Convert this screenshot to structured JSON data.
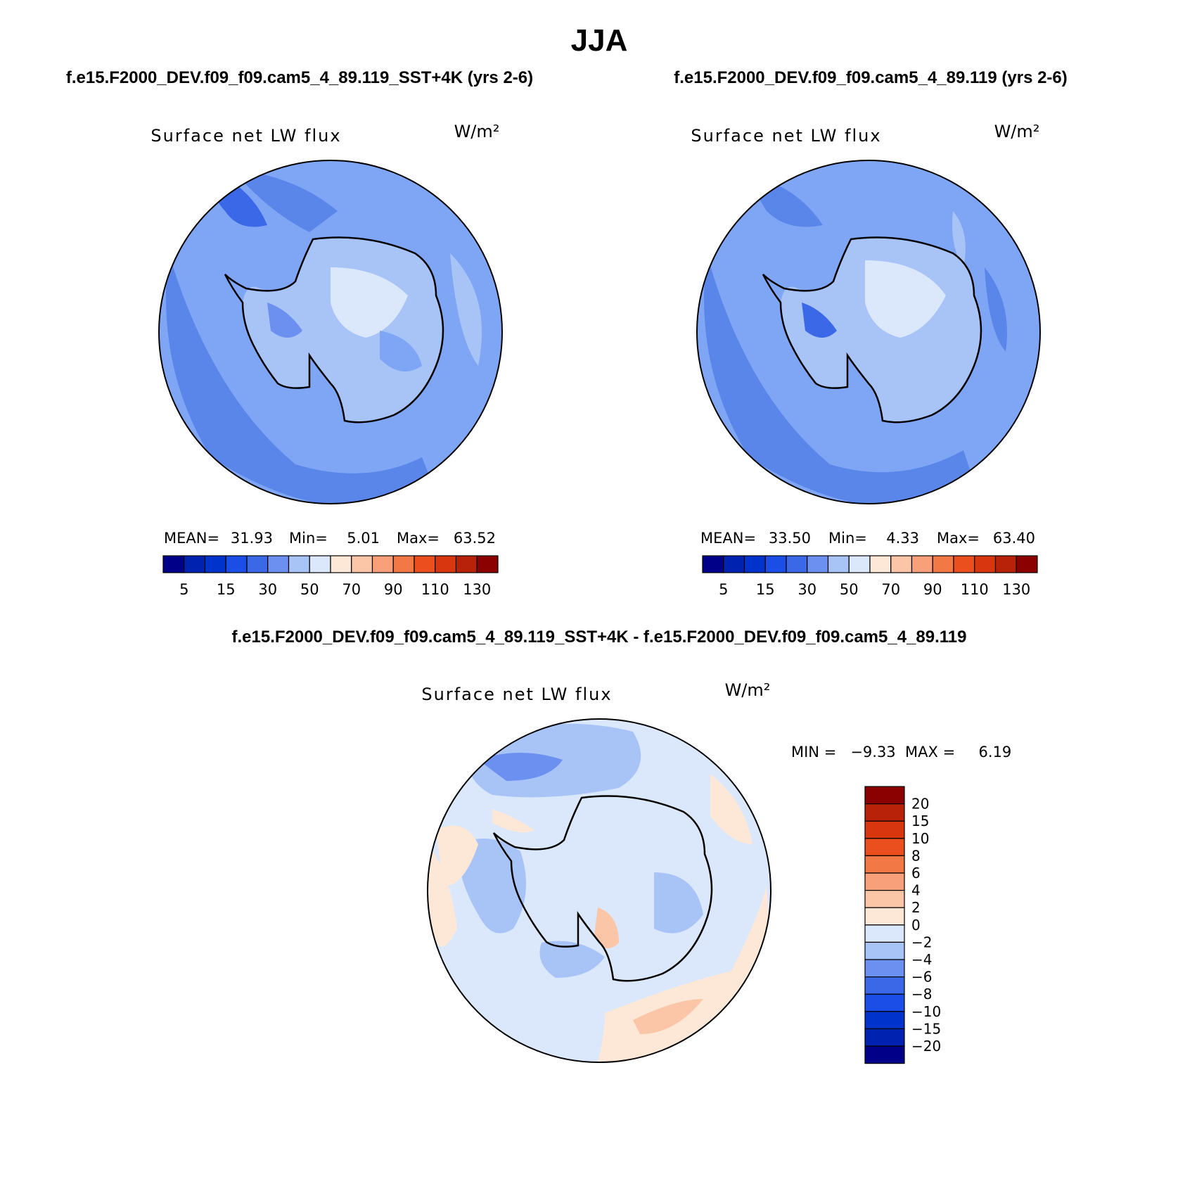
{
  "season": "JJA",
  "panel_top_left": {
    "case_title": "f.e15.F2000_DEV.f09_f09.cam5_4_89.119_SST+4K (yrs 2-6)",
    "variable": "Surface net LW flux",
    "units": "W/m²",
    "stats": {
      "mean_label": "MEAN=",
      "mean": "31.93",
      "min_label": "Min=",
      "min": "5.01",
      "max_label": "Max=",
      "max": "63.52"
    }
  },
  "panel_top_right": {
    "case_title": "f.e15.F2000_DEV.f09_f09.cam5_4_89.119 (yrs 2-6)",
    "variable": "Surface net LW flux",
    "units": "W/m²",
    "stats": {
      "mean_label": "MEAN=",
      "mean": "33.50",
      "min_label": "Min=",
      "min": "4.33",
      "max_label": "Max=",
      "max": "63.40"
    }
  },
  "colorbar_abs": {
    "colors": [
      "#000088",
      "#0022b0",
      "#0033cc",
      "#1a4ee6",
      "#3a68e6",
      "#6b90f0",
      "#a8c4f7",
      "#dbe8fb",
      "#fde8d8",
      "#fbc6a8",
      "#f8a07a",
      "#f27845",
      "#ec4f1e",
      "#d8360f",
      "#b82208",
      "#8b0000"
    ],
    "tick_labels": [
      "5",
      "15",
      "30",
      "50",
      "70",
      "90",
      "110",
      "130"
    ]
  },
  "panel_diff": {
    "title": "f.e15.F2000_DEV.f09_f09.cam5_4_89.119_SST+4K - f.e15.F2000_DEV.f09_f09.cam5_4_89.119",
    "variable": "Surface net LW flux",
    "units": "W/m²",
    "minmax": "MIN =   −9.33  MAX =     6.19"
  },
  "colorbar_diff": {
    "colors": [
      "#8b0000",
      "#b82208",
      "#d8360f",
      "#ec4f1e",
      "#f27845",
      "#f8a07a",
      "#fbc6a8",
      "#fde8d8",
      "#dbe8fb",
      "#a8c4f7",
      "#6b90f0",
      "#3a68e6",
      "#1a4ee6",
      "#0033cc",
      "#0022b0",
      "#000088"
    ],
    "tick_labels": [
      "20",
      "15",
      "10",
      "8",
      "6",
      "4",
      "2",
      "0",
      "−2",
      "−4",
      "−6",
      "−8",
      "−10",
      "−15",
      "−20"
    ]
  },
  "legend_colors": {
    "ocean_light": "#7fa6f5",
    "ocean_mid": "#5a86ea",
    "ocean_dark": "#3a68e6",
    "ice_light": "#a8c4f7",
    "ice_pale": "#dbe8fb",
    "diff_base": "#dbe8fb",
    "diff_blue": "#a8c4f7",
    "diff_blue_mid": "#6b90f0",
    "diff_warm": "#fde8d8",
    "diff_warm_mid": "#fbc6a8"
  }
}
